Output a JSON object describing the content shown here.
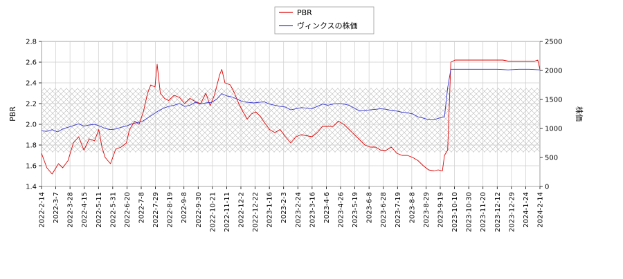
{
  "chart_data": {
    "type": "line",
    "legend_placement": "top-center",
    "grid": true,
    "band": {
      "y_range": [
        1.73,
        2.35
      ],
      "pattern": "crosshatch"
    },
    "x_tick_labels": [
      "2022-2-14",
      "2022-3-7",
      "2022-3-28",
      "2022-4-15",
      "2022-5-11",
      "2022-5-31",
      "2022-6-20",
      "2022-7-8",
      "2022-7-29",
      "2022-8-19",
      "2022-9-8",
      "2022-9-30",
      "2022-10-21",
      "2022-11-11",
      "2022-12-2",
      "2022-12-22",
      "2023-1-16",
      "2023-2-3",
      "2023-2-24",
      "2023-3-16",
      "2023-4-6",
      "2023-4-26",
      "2023-5-19",
      "2023-6-8",
      "2023-6-28",
      "2023-7-19",
      "2023-8-8",
      "2023-8-29",
      "2023-9-19",
      "2023-10-10",
      "2023-10-30",
      "2023-11-20",
      "2023-12-12",
      "2023-12-29",
      "2024-1-24",
      "2024-2-14"
    ],
    "y_left": {
      "label": "PBR",
      "range": [
        1.4,
        2.8
      ],
      "ticks": [
        "1.4",
        "1.6",
        "1.8",
        "2.0",
        "2.2",
        "2.4",
        "2.6",
        "2.8"
      ]
    },
    "y_right": {
      "label": "株価",
      "range": [
        0,
        2500
      ],
      "ticks": [
        "0",
        "500",
        "1000",
        "1500",
        "2000",
        "2500"
      ]
    },
    "series": [
      {
        "name": "PBR",
        "color": "#dd0000",
        "axis": "left",
        "points": [
          [
            0,
            1.72
          ],
          [
            0.5,
            1.58
          ],
          [
            1,
            1.52
          ],
          [
            1.6,
            1.62
          ],
          [
            2,
            1.58
          ],
          [
            2.5,
            1.65
          ],
          [
            3,
            1.82
          ],
          [
            3.5,
            1.88
          ],
          [
            4,
            1.75
          ],
          [
            4.5,
            1.86
          ],
          [
            5,
            1.84
          ],
          [
            5.4,
            1.95
          ],
          [
            5.7,
            1.78
          ],
          [
            6,
            1.68
          ],
          [
            6.5,
            1.62
          ],
          [
            7,
            1.76
          ],
          [
            7.5,
            1.78
          ],
          [
            8,
            1.82
          ],
          [
            8.3,
            1.95
          ],
          [
            8.8,
            2.03
          ],
          [
            9.2,
            2.0
          ],
          [
            9.6,
            2.12
          ],
          [
            10,
            2.3
          ],
          [
            10.3,
            2.38
          ],
          [
            10.7,
            2.36
          ],
          [
            10.9,
            2.58
          ],
          [
            11.2,
            2.3
          ],
          [
            11.6,
            2.25
          ],
          [
            12,
            2.23
          ],
          [
            12.5,
            2.28
          ],
          [
            13,
            2.26
          ],
          [
            13.5,
            2.2
          ],
          [
            14,
            2.25
          ],
          [
            14.5,
            2.22
          ],
          [
            15,
            2.2
          ],
          [
            15.5,
            2.3
          ],
          [
            15.9,
            2.18
          ],
          [
            16.3,
            2.28
          ],
          [
            16.8,
            2.48
          ],
          [
            17,
            2.53
          ],
          [
            17.3,
            2.4
          ],
          [
            17.8,
            2.38
          ],
          [
            18.2,
            2.3
          ],
          [
            18.6,
            2.2
          ],
          [
            19,
            2.12
          ],
          [
            19.4,
            2.05
          ],
          [
            19.8,
            2.1
          ],
          [
            20.2,
            2.12
          ],
          [
            20.6,
            2.08
          ],
          [
            21,
            2.02
          ],
          [
            21.5,
            1.95
          ],
          [
            22,
            1.92
          ],
          [
            22.5,
            1.95
          ],
          [
            23,
            1.88
          ],
          [
            23.5,
            1.82
          ],
          [
            24,
            1.88
          ],
          [
            24.5,
            1.9
          ],
          [
            25,
            1.89
          ],
          [
            25.5,
            1.88
          ],
          [
            26,
            1.92
          ],
          [
            26.5,
            1.98
          ],
          [
            27,
            1.98
          ],
          [
            27.5,
            1.98
          ],
          [
            28,
            2.03
          ],
          [
            28.5,
            2.0
          ],
          [
            29,
            1.95
          ],
          [
            29.5,
            1.9
          ],
          [
            30,
            1.85
          ],
          [
            30.5,
            1.8
          ],
          [
            31,
            1.78
          ],
          [
            31.5,
            1.78
          ],
          [
            32,
            1.75
          ],
          [
            32.5,
            1.75
          ],
          [
            33,
            1.78
          ],
          [
            33.5,
            1.72
          ],
          [
            34,
            1.7
          ],
          [
            34.5,
            1.7
          ],
          [
            35,
            1.68
          ],
          [
            35.5,
            1.65
          ],
          [
            36,
            1.6
          ],
          [
            36.5,
            1.56
          ],
          [
            37,
            1.55
          ],
          [
            37.4,
            1.56
          ],
          [
            37.8,
            1.55
          ],
          [
            38,
            1.7
          ],
          [
            38.3,
            1.75
          ],
          [
            38.6,
            2.6
          ],
          [
            39,
            2.62
          ],
          [
            40,
            2.62
          ],
          [
            41,
            2.62
          ],
          [
            42,
            2.62
          ],
          [
            43,
            2.62
          ],
          [
            43.5,
            2.62
          ],
          [
            44,
            2.61
          ],
          [
            45,
            2.61
          ],
          [
            46,
            2.61
          ],
          [
            46.5,
            2.61
          ],
          [
            46.8,
            2.62
          ],
          [
            47,
            2.53
          ]
        ]
      },
      {
        "name": "ヴィンクスの株価",
        "color": "#3333cc",
        "axis": "right",
        "points": [
          [
            0,
            960
          ],
          [
            0.5,
            950
          ],
          [
            1,
            980
          ],
          [
            1.5,
            940
          ],
          [
            2,
            990
          ],
          [
            2.5,
            1020
          ],
          [
            3,
            1050
          ],
          [
            3.5,
            1080
          ],
          [
            4,
            1040
          ],
          [
            4.5,
            1060
          ],
          [
            5,
            1070
          ],
          [
            5.5,
            1040
          ],
          [
            6,
            1000
          ],
          [
            6.5,
            980
          ],
          [
            7,
            990
          ],
          [
            7.5,
            1020
          ],
          [
            8,
            1040
          ],
          [
            8.5,
            1080
          ],
          [
            9,
            1100
          ],
          [
            9.5,
            1120
          ],
          [
            10,
            1180
          ],
          [
            10.5,
            1240
          ],
          [
            11,
            1300
          ],
          [
            11.5,
            1350
          ],
          [
            12,
            1380
          ],
          [
            12.5,
            1400
          ],
          [
            13,
            1430
          ],
          [
            13.5,
            1380
          ],
          [
            14,
            1400
          ],
          [
            14.5,
            1450
          ],
          [
            15,
            1420
          ],
          [
            15.5,
            1440
          ],
          [
            16,
            1450
          ],
          [
            16.5,
            1500
          ],
          [
            17,
            1600
          ],
          [
            17.5,
            1560
          ],
          [
            18,
            1540
          ],
          [
            18.5,
            1500
          ],
          [
            19,
            1460
          ],
          [
            19.5,
            1450
          ],
          [
            20,
            1440
          ],
          [
            20.5,
            1450
          ],
          [
            21,
            1460
          ],
          [
            21.5,
            1420
          ],
          [
            22,
            1400
          ],
          [
            22.5,
            1380
          ],
          [
            23,
            1370
          ],
          [
            23.5,
            1320
          ],
          [
            24,
            1340
          ],
          [
            24.5,
            1360
          ],
          [
            25,
            1350
          ],
          [
            25.5,
            1340
          ],
          [
            26,
            1380
          ],
          [
            26.5,
            1420
          ],
          [
            27,
            1400
          ],
          [
            27.5,
            1420
          ],
          [
            28,
            1430
          ],
          [
            28.5,
            1420
          ],
          [
            29,
            1400
          ],
          [
            29.5,
            1350
          ],
          [
            30,
            1300
          ],
          [
            30.5,
            1310
          ],
          [
            31,
            1320
          ],
          [
            31.5,
            1330
          ],
          [
            32,
            1340
          ],
          [
            32.5,
            1330
          ],
          [
            33,
            1310
          ],
          [
            33.5,
            1300
          ],
          [
            34,
            1280
          ],
          [
            34.5,
            1270
          ],
          [
            35,
            1250
          ],
          [
            35.5,
            1200
          ],
          [
            36,
            1180
          ],
          [
            36.5,
            1150
          ],
          [
            37,
            1150
          ],
          [
            37.5,
            1180
          ],
          [
            38,
            1200
          ],
          [
            38.3,
            1700
          ],
          [
            38.6,
            2020
          ],
          [
            39,
            2020
          ],
          [
            40,
            2020
          ],
          [
            41,
            2020
          ],
          [
            42,
            2020
          ],
          [
            43,
            2020
          ],
          [
            44,
            2010
          ],
          [
            45,
            2020
          ],
          [
            46,
            2020
          ],
          [
            47,
            2010
          ]
        ]
      }
    ],
    "x_index_range": [
      0,
      47
    ]
  }
}
